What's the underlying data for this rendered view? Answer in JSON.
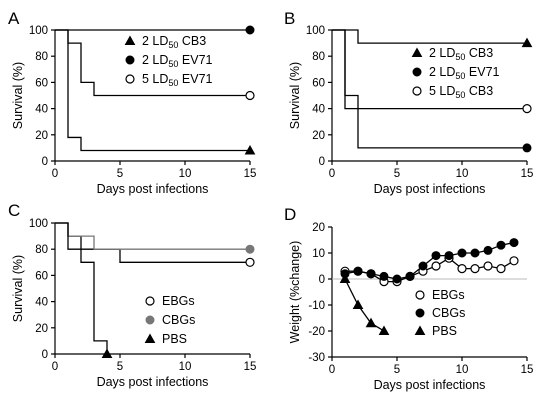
{
  "chart_data": [
    {
      "panel": "A",
      "type": "line",
      "step": true,
      "xlabel": "Days post infections",
      "ylabel": "Survival (%)",
      "xlim": [
        0,
        15
      ],
      "ylim": [
        0,
        100
      ],
      "xticks": [
        0,
        5,
        10,
        15
      ],
      "yticks": [
        0,
        20,
        40,
        60,
        80,
        100
      ],
      "grid": false,
      "legend": "top-right",
      "series": [
        {
          "name": "2 LD50 CB3",
          "label_parts": [
            "2 LD",
            "50",
            " CB3"
          ],
          "marker": "triangle",
          "color": "#000000",
          "x": [
            0,
            1,
            2,
            15
          ],
          "y": [
            100,
            18,
            8,
            8
          ]
        },
        {
          "name": "2 LD50 EV71",
          "label_parts": [
            "2 LD",
            "50",
            " EV71"
          ],
          "marker": "filled-circle",
          "color": "#000000",
          "x": [
            0,
            15
          ],
          "y": [
            100,
            100
          ]
        },
        {
          "name": "5 LD50 EV71",
          "label_parts": [
            "5 LD",
            "50",
            " EV71"
          ],
          "marker": "open-circle",
          "color": "#000000",
          "x": [
            0,
            1,
            2,
            3,
            15
          ],
          "y": [
            100,
            90,
            60,
            50,
            50
          ]
        }
      ]
    },
    {
      "panel": "B",
      "type": "line",
      "step": true,
      "xlabel": "Days post infections",
      "ylabel": "Survival (%)",
      "xlim": [
        0,
        15
      ],
      "ylim": [
        0,
        100
      ],
      "xticks": [
        0,
        5,
        10,
        15
      ],
      "yticks": [
        0,
        20,
        40,
        60,
        80,
        100
      ],
      "grid": false,
      "legend": "right",
      "series": [
        {
          "name": "2 LD50 CB3",
          "label_parts": [
            "2 LD",
            "50",
            " CB3"
          ],
          "marker": "triangle",
          "color": "#000000",
          "x": [
            0,
            1,
            2,
            15
          ],
          "y": [
            100,
            100,
            90,
            90
          ]
        },
        {
          "name": "2 LD50 EV71",
          "label_parts": [
            "2 LD",
            "50",
            " EV71"
          ],
          "marker": "filled-circle",
          "color": "#000000",
          "x": [
            0,
            1,
            2,
            15
          ],
          "y": [
            100,
            50,
            10,
            10
          ]
        },
        {
          "name": "5 LD50 CB3",
          "label_parts": [
            "5 LD",
            "50",
            " CB3"
          ],
          "marker": "open-circle",
          "color": "#000000",
          "x": [
            0,
            1,
            15
          ],
          "y": [
            100,
            40,
            40
          ]
        }
      ]
    },
    {
      "panel": "C",
      "type": "line",
      "step": true,
      "xlabel": "Days post infections",
      "ylabel": "Survival (%)",
      "xlim": [
        0,
        15
      ],
      "ylim": [
        0,
        100
      ],
      "xticks": [
        0,
        5,
        10,
        15
      ],
      "yticks": [
        0,
        20,
        40,
        60,
        80,
        100
      ],
      "grid": false,
      "legend": "bottom-right",
      "series": [
        {
          "name": "EBGs",
          "label_parts": [
            "EBGs"
          ],
          "marker": "open-circle",
          "color": "#000000",
          "x": [
            0,
            1,
            2,
            5,
            15
          ],
          "y": [
            100,
            90,
            80,
            70,
            70
          ]
        },
        {
          "name": "CBGs",
          "label_parts": [
            "CBGs"
          ],
          "marker": "filled-circle",
          "color": "#777777",
          "x": [
            0,
            1,
            2,
            3,
            15
          ],
          "y": [
            100,
            90,
            90,
            80,
            80
          ]
        },
        {
          "name": "PBS",
          "label_parts": [
            "PBS"
          ],
          "marker": "triangle",
          "color": "#000000",
          "x": [
            0,
            1,
            2,
            3,
            4
          ],
          "y": [
            100,
            80,
            70,
            10,
            0
          ]
        }
      ]
    },
    {
      "panel": "D",
      "type": "line",
      "step": false,
      "xlabel": "Days post infections",
      "ylabel": "Weight (%change)",
      "xlim": [
        0,
        15
      ],
      "ylim": [
        -30,
        20
      ],
      "xticks": [
        0,
        5,
        10,
        15
      ],
      "yticks": [
        -30,
        -20,
        -10,
        0,
        10,
        20
      ],
      "reference_line_y": 0,
      "grid": false,
      "legend": "bottom-right",
      "series": [
        {
          "name": "EBGs",
          "label_parts": [
            "EBGs"
          ],
          "marker": "open-circle",
          "color": "#000000",
          "x": [
            1,
            2,
            3,
            4,
            5,
            6,
            7,
            8,
            9,
            10,
            11,
            12,
            13,
            14
          ],
          "y": [
            3,
            3,
            2,
            -1,
            -1,
            1,
            3,
            5,
            8,
            4,
            4,
            5,
            4,
            7
          ]
        },
        {
          "name": "CBGs",
          "label_parts": [
            "CBGs"
          ],
          "marker": "filled-circle",
          "color": "#000000",
          "x": [
            1,
            2,
            3,
            4,
            5,
            6,
            7,
            8,
            9,
            10,
            11,
            12,
            13,
            14
          ],
          "y": [
            2,
            3,
            2,
            1,
            0,
            1,
            5,
            9,
            9,
            10,
            10,
            11,
            13,
            14
          ]
        },
        {
          "name": "PBS",
          "label_parts": [
            "PBS"
          ],
          "marker": "triangle",
          "color": "#000000",
          "x": [
            1,
            2,
            3,
            4
          ],
          "y": [
            0,
            -10,
            -17,
            -20
          ]
        }
      ]
    }
  ]
}
